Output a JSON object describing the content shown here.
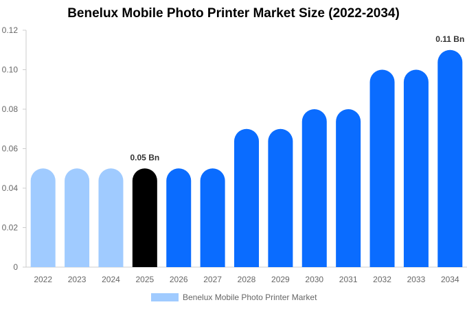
{
  "chart_data": {
    "type": "bar",
    "title": "Benelux Mobile Photo Printer Market Size (2022-2034)",
    "categories": [
      "2022",
      "2023",
      "2024",
      "2025",
      "2026",
      "2027",
      "2028",
      "2029",
      "2030",
      "2031",
      "2032",
      "2033",
      "2034"
    ],
    "series": [
      {
        "name": "Benelux Mobile Photo Printer Market",
        "values": [
          0.05,
          0.05,
          0.05,
          0.05,
          0.05,
          0.05,
          0.07,
          0.07,
          0.08,
          0.08,
          0.1,
          0.1,
          0.11
        ]
      }
    ],
    "bar_colors": [
      "#a0cbff",
      "#a0cbff",
      "#a0cbff",
      "#000000",
      "#0a6cff",
      "#0a6cff",
      "#0a6cff",
      "#0a6cff",
      "#0a6cff",
      "#0a6cff",
      "#0a6cff",
      "#0a6cff",
      "#0a6cff"
    ],
    "data_labels": [
      {
        "category": "2025",
        "text": "0.05 Bn"
      },
      {
        "category": "2034",
        "text": "0.11 Bn"
      }
    ],
    "y_ticks": [
      "0",
      "0.02",
      "0.04",
      "0.06",
      "0.08",
      "0.10",
      "0.12"
    ],
    "ylim": [
      0,
      0.12
    ],
    "xlabel": "",
    "ylabel": "",
    "grid": false,
    "legend_position": "bottom",
    "legend_color": "#a0cbff"
  }
}
